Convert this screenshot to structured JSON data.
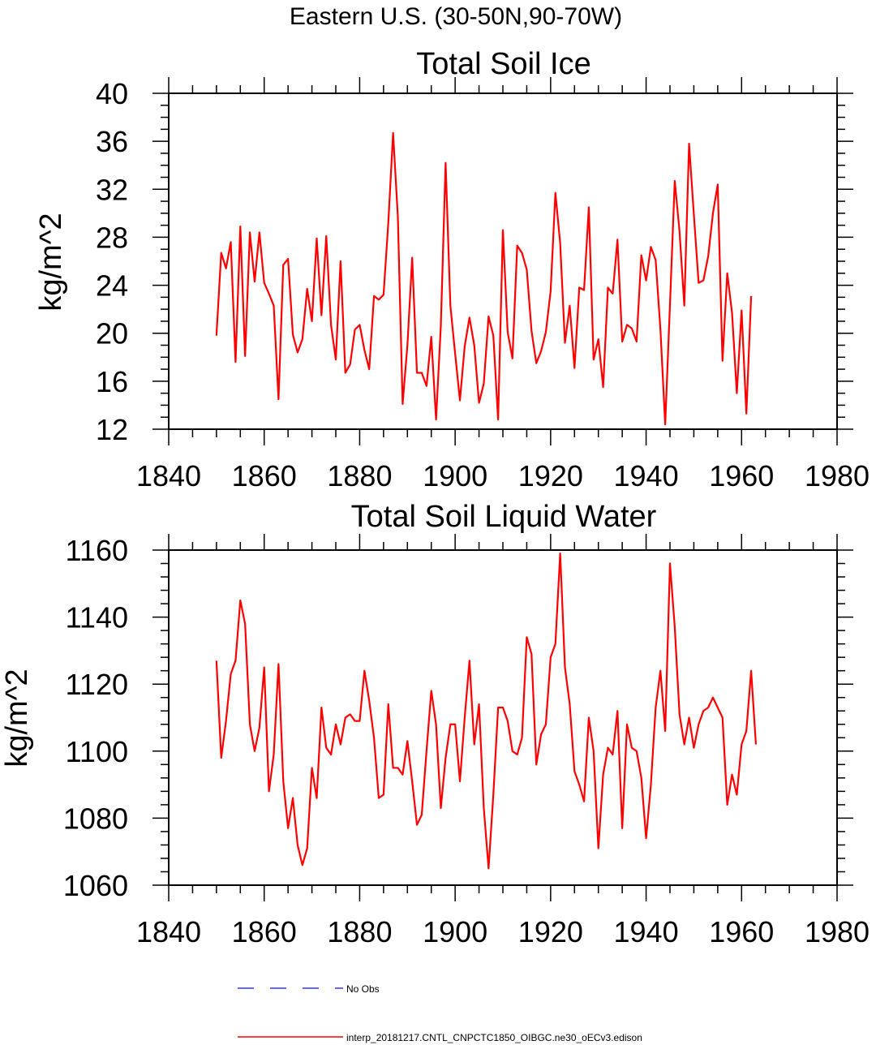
{
  "figure": {
    "title": "Eastern U.S. (30-50N,90-70W)"
  },
  "chart_data": [
    {
      "type": "line",
      "title": "Total Soil Ice",
      "xlabel": "",
      "ylabel": "kg/m^2",
      "xlim": [
        1840,
        1980
      ],
      "ylim": [
        12,
        40
      ],
      "xticks": [
        1840,
        1860,
        1880,
        1900,
        1920,
        1940,
        1960,
        1980
      ],
      "yticks": [
        12,
        16,
        20,
        24,
        28,
        32,
        36,
        40
      ],
      "x_start": 1850,
      "x_step": 1,
      "series": [
        {
          "name": "interp_20181217.CNTL_CNPCTC1850_OIBGC.ne30_oECv3.edison",
          "color": "#ff0000",
          "values": [
            19.8,
            26.7,
            25.4,
            27.6,
            17.6,
            28.9,
            18.1,
            28.4,
            24.3,
            28.4,
            24.2,
            23.3,
            22.3,
            14.5,
            25.7,
            26.2,
            19.9,
            18.4,
            19.5,
            23.7,
            21.0,
            27.9,
            21.5,
            28.1,
            20.7,
            17.8,
            26.0,
            16.7,
            17.4,
            20.3,
            20.7,
            18.6,
            17.0,
            23.1,
            22.8,
            23.2,
            29.2,
            36.7,
            29.7,
            14.1,
            19.0,
            26.3,
            16.7,
            16.7,
            15.6,
            19.7,
            12.8,
            20.6,
            34.2,
            22.3,
            18.3,
            14.4,
            18.9,
            21.3,
            19.0,
            14.2,
            15.8,
            21.4,
            19.8,
            12.8,
            28.6,
            20.1,
            17.9,
            27.3,
            26.7,
            25.3,
            20.2,
            17.5,
            18.5,
            20.1,
            23.5,
            31.7,
            27.5,
            19.2,
            22.3,
            17.1,
            23.8,
            23.6,
            30.5,
            17.8,
            19.5,
            15.5,
            23.8,
            23.3,
            27.8,
            19.3,
            20.7,
            20.4,
            19.3,
            26.5,
            24.4,
            27.2,
            26.1,
            20.3,
            12.4,
            22.4,
            32.7,
            28.5,
            22.3,
            35.8,
            29.9,
            24.2,
            24.4,
            26.4,
            30.0,
            32.4,
            17.7,
            25.0,
            21.7,
            15.0,
            21.9,
            13.3,
            23.1
          ]
        }
      ]
    },
    {
      "type": "line",
      "title": "Total Soil Liquid Water",
      "xlabel": "",
      "ylabel": "kg/m^2",
      "xlim": [
        1840,
        1980
      ],
      "ylim": [
        1060,
        1160
      ],
      "xticks": [
        1840,
        1860,
        1880,
        1900,
        1920,
        1940,
        1960,
        1980
      ],
      "yticks": [
        1060,
        1080,
        1100,
        1120,
        1140,
        1160
      ],
      "x_start": 1850,
      "x_step": 1,
      "series": [
        {
          "name": "interp_20181217.CNTL_CNPCTC1850_OIBGC.ne30_oECv3.edison",
          "color": "#ff0000",
          "values": [
            1127,
            1098,
            1109,
            1123,
            1127,
            1145,
            1138,
            1108,
            1100,
            1107,
            1125,
            1088,
            1099,
            1126,
            1091,
            1077,
            1086,
            1072,
            1066,
            1071,
            1095,
            1086,
            1113,
            1101,
            1099,
            1108,
            1102,
            1110,
            1111,
            1109,
            1109,
            1124,
            1115,
            1104,
            1086,
            1087,
            1114,
            1095,
            1095,
            1093,
            1103,
            1091,
            1078,
            1081,
            1100,
            1118,
            1108,
            1083,
            1098,
            1108,
            1108,
            1091,
            1110,
            1127,
            1102,
            1114,
            1083,
            1065,
            1087,
            1113,
            1113,
            1109,
            1100,
            1099,
            1104,
            1134,
            1129,
            1096,
            1105,
            1108,
            1128,
            1132,
            1159,
            1125,
            1114,
            1094,
            1090,
            1085,
            1110,
            1100,
            1071,
            1093,
            1101,
            1099,
            1112,
            1077,
            1108,
            1101,
            1100,
            1092,
            1074,
            1090,
            1113,
            1124,
            1106,
            1156,
            1137,
            1111,
            1102,
            1110,
            1101,
            1108,
            1112,
            1113,
            1116,
            1113,
            1110,
            1084,
            1093,
            1087,
            1102,
            1106,
            1124,
            1102
          ]
        }
      ]
    }
  ],
  "legend": [
    {
      "label": "No Obs",
      "color": "#3333ff",
      "style": "dashed"
    },
    {
      "label": "interp_20181217.CNTL_CNPCTC1850_OIBGC.ne30_oECv3.edison",
      "color": "#ff0000",
      "style": "solid"
    }
  ]
}
